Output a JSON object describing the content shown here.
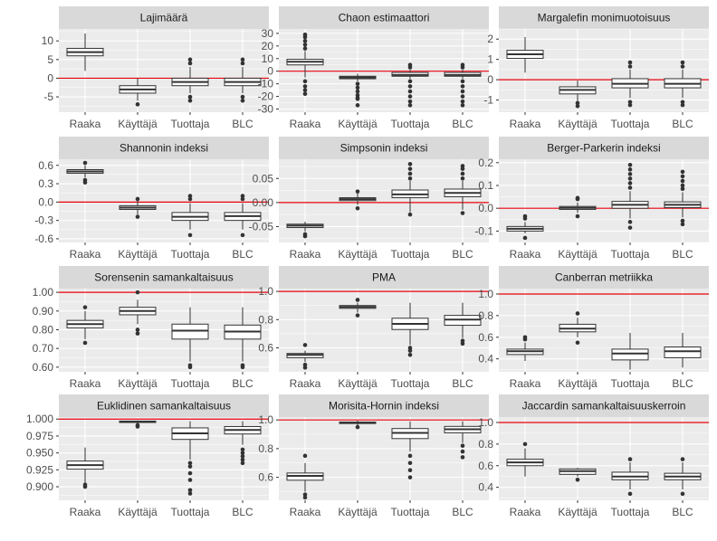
{
  "figure": {
    "background": "#ffffff",
    "panel_bg": "#ebebeb",
    "strip_bg": "#d9d9d9",
    "grid_color": "#ffffff",
    "box_fill": "#ffffff",
    "box_stroke": "#333333",
    "ref_line_color": "#e8000b"
  },
  "chart_data": [
    {
      "type": "box",
      "title": "Lajimäärä",
      "categories": [
        "Raaka",
        "Käyttäjä",
        "Tuottaja",
        "BLC"
      ],
      "ylim": [
        -9.1,
        13.2
      ],
      "yticks": [
        -5,
        0,
        5,
        10
      ],
      "ref_line": 0,
      "boxes": [
        {
          "whisker_low": 2,
          "q1": 6,
          "median": 7,
          "q3": 8,
          "whisker_high": 12,
          "outliers": []
        },
        {
          "whisker_low": -6,
          "q1": -4,
          "median": -3,
          "q3": -2,
          "whisker_high": 0,
          "outliers": [
            -7
          ]
        },
        {
          "whisker_low": -4,
          "q1": -2,
          "median": -1,
          "q3": 0,
          "whisker_high": 3,
          "outliers": [
            -5,
            -6,
            4,
            5
          ]
        },
        {
          "whisker_low": -4,
          "q1": -2,
          "median": -1,
          "q3": 0,
          "whisker_high": 3,
          "outliers": [
            -5,
            -6,
            4,
            5
          ]
        }
      ]
    },
    {
      "type": "box",
      "title": "Chaon estimaattori",
      "categories": [
        "Raaka",
        "Käyttäjä",
        "Tuottaja",
        "BLC"
      ],
      "ylim": [
        -32.5,
        33.5
      ],
      "yticks": [
        -30,
        -20,
        -10,
        0,
        10,
        20,
        30
      ],
      "ref_line": 0,
      "boxes": [
        {
          "whisker_low": -5,
          "q1": 5,
          "median": 7.5,
          "q3": 9.5,
          "whisker_high": 16,
          "outliers": [
            -8,
            -12,
            -15,
            -18,
            18,
            21,
            24,
            27,
            29
          ]
        },
        {
          "whisker_low": -8,
          "q1": -6,
          "median": -5,
          "q3": -4,
          "whisker_high": -2,
          "outliers": [
            -10,
            -13,
            -16,
            -19,
            -21,
            -22,
            -27
          ]
        },
        {
          "whisker_low": -6,
          "q1": -4,
          "median": -3,
          "q3": -1,
          "whisker_high": 1,
          "outliers": [
            -8,
            -12,
            -16,
            -20,
            -24,
            -27,
            3,
            5
          ]
        },
        {
          "whisker_low": -6,
          "q1": -4,
          "median": -3,
          "q3": -1,
          "whisker_high": 1,
          "outliers": [
            -8,
            -12,
            -16,
            -20,
            -24,
            -27,
            3,
            5
          ]
        }
      ]
    },
    {
      "type": "box",
      "title": "Margalefin monimuotoisuus",
      "categories": [
        "Raaka",
        "Käyttäjä",
        "Tuottaja",
        "BLC"
      ],
      "ylim": [
        -1.6,
        2.5
      ],
      "yticks": [
        -1,
        0,
        1,
        2
      ],
      "ref_line": 0,
      "boxes": [
        {
          "whisker_low": 0.35,
          "q1": 1.05,
          "median": 1.25,
          "q3": 1.45,
          "whisker_high": 2.1,
          "outliers": []
        },
        {
          "whisker_low": -1.05,
          "q1": -0.7,
          "median": -0.5,
          "q3": -0.35,
          "whisker_high": -0.05,
          "outliers": [
            -1.15,
            -1.3
          ]
        },
        {
          "whisker_low": -0.9,
          "q1": -0.4,
          "median": -0.2,
          "q3": 0.05,
          "whisker_high": 0.5,
          "outliers": [
            -1.1,
            -1.25,
            0.65,
            0.85
          ]
        },
        {
          "whisker_low": -0.9,
          "q1": -0.4,
          "median": -0.2,
          "q3": 0.05,
          "whisker_high": 0.5,
          "outliers": [
            -1.1,
            -1.25,
            0.65,
            0.85
          ]
        }
      ]
    },
    {
      "type": "box",
      "title": "Shannonin indeksi",
      "categories": [
        "Raaka",
        "Käyttäjä",
        "Tuottaja",
        "BLC"
      ],
      "ylim": [
        -0.66,
        0.7
      ],
      "yticks": [
        -0.6,
        -0.3,
        0.0,
        0.3,
        0.6
      ],
      "ref_line": 0,
      "boxes": [
        {
          "whisker_low": 0.4,
          "q1": 0.47,
          "median": 0.5,
          "q3": 0.53,
          "whisker_high": 0.6,
          "outliers": [
            0.32,
            0.36,
            0.64
          ]
        },
        {
          "whisker_low": -0.2,
          "q1": -0.12,
          "median": -0.09,
          "q3": -0.06,
          "whisker_high": 0.02,
          "outliers": [
            -0.24,
            0.05
          ]
        },
        {
          "whisker_low": -0.45,
          "q1": -0.3,
          "median": -0.24,
          "q3": -0.17,
          "whisker_high": -0.02,
          "outliers": [
            -0.54,
            0.05,
            0.1
          ]
        },
        {
          "whisker_low": -0.45,
          "q1": -0.3,
          "median": -0.23,
          "q3": -0.17,
          "whisker_high": -0.02,
          "outliers": [
            -0.54,
            0.05,
            0.1
          ]
        }
      ]
    },
    {
      "type": "box",
      "title": "Simpsonin indeksi",
      "categories": [
        "Raaka",
        "Käyttäjä",
        "Tuottaja",
        "BLC"
      ],
      "ylim": [
        -0.083,
        0.09
      ],
      "yticks": [
        -0.05,
        0.0,
        0.05
      ],
      "ref_line": 0,
      "boxes": [
        {
          "whisker_low": -0.06,
          "q1": -0.052,
          "median": -0.048,
          "q3": -0.045,
          "whisker_high": -0.04,
          "outliers": [
            -0.07,
            -0.066
          ]
        },
        {
          "whisker_low": -0.005,
          "q1": 0.004,
          "median": 0.007,
          "q3": 0.01,
          "whisker_high": 0.02,
          "outliers": [
            -0.012,
            0.023
          ]
        },
        {
          "whisker_low": -0.02,
          "q1": 0.01,
          "median": 0.017,
          "q3": 0.026,
          "whisker_high": 0.045,
          "outliers": [
            -0.025,
            0.05,
            0.06,
            0.07,
            0.08
          ]
        },
        {
          "whisker_low": -0.015,
          "q1": 0.012,
          "median": 0.02,
          "q3": 0.028,
          "whisker_high": 0.045,
          "outliers": [
            -0.022,
            0.05,
            0.06,
            0.07,
            0.076
          ]
        }
      ]
    },
    {
      "type": "box",
      "title": "Berger-Parkerin indeksi",
      "categories": [
        "Raaka",
        "Käyttäjä",
        "Tuottaja",
        "BLC"
      ],
      "ylim": [
        -0.15,
        0.215
      ],
      "yticks": [
        -0.1,
        0.0,
        0.1,
        0.2
      ],
      "ref_line": 0,
      "boxes": [
        {
          "whisker_low": -0.11,
          "q1": -0.1,
          "median": -0.09,
          "q3": -0.08,
          "whisker_high": -0.06,
          "outliers": [
            -0.035,
            -0.045,
            -0.13
          ]
        },
        {
          "whisker_low": -0.02,
          "q1": -0.005,
          "median": 0.002,
          "q3": 0.008,
          "whisker_high": 0.025,
          "outliers": [
            -0.035,
            0.04,
            0.045
          ]
        },
        {
          "whisker_low": -0.045,
          "q1": 0.0,
          "median": 0.015,
          "q3": 0.03,
          "whisker_high": 0.075,
          "outliers": [
            -0.06,
            -0.085,
            0.09,
            0.11,
            0.13,
            0.15,
            0.17,
            0.19
          ]
        },
        {
          "whisker_low": -0.04,
          "q1": 0.003,
          "median": 0.015,
          "q3": 0.028,
          "whisker_high": 0.07,
          "outliers": [
            -0.055,
            -0.07,
            0.085,
            0.1,
            0.12,
            0.14,
            0.16
          ]
        }
      ]
    },
    {
      "type": "box",
      "title": "Sorensenin samankaltaisuus",
      "categories": [
        "Raaka",
        "Käyttäjä",
        "Tuottaja",
        "BLC"
      ],
      "ylim": [
        0.575,
        1.02
      ],
      "yticks": [
        0.6,
        0.7,
        0.8,
        0.9,
        1.0
      ],
      "ref_line": 1.0,
      "boxes": [
        {
          "whisker_low": 0.75,
          "q1": 0.81,
          "median": 0.83,
          "q3": 0.85,
          "whisker_high": 0.9,
          "outliers": [
            0.73,
            0.92
          ]
        },
        {
          "whisker_low": 0.83,
          "q1": 0.88,
          "median": 0.9,
          "q3": 0.92,
          "whisker_high": 0.96,
          "outliers": [
            0.78,
            0.8,
            1.0
          ]
        },
        {
          "whisker_low": 0.63,
          "q1": 0.75,
          "median": 0.795,
          "q3": 0.83,
          "whisker_high": 0.92,
          "outliers": [
            0.6,
            0.61
          ]
        },
        {
          "whisker_low": 0.63,
          "q1": 0.75,
          "median": 0.79,
          "q3": 0.825,
          "whisker_high": 0.92,
          "outliers": [
            0.6,
            0.61
          ]
        }
      ]
    },
    {
      "type": "box",
      "title": "PMA",
      "categories": [
        "Raaka",
        "Käyttäjä",
        "Tuottaja",
        "BLC"
      ],
      "ylim": [
        0.43,
        1.02
      ],
      "yticks": [
        0.6,
        0.8,
        1.0
      ],
      "ref_line": 1.0,
      "boxes": [
        {
          "whisker_low": 0.5,
          "q1": 0.53,
          "median": 0.55,
          "q3": 0.56,
          "whisker_high": 0.58,
          "outliers": [
            0.46,
            0.48,
            0.62
          ]
        },
        {
          "whisker_low": 0.85,
          "q1": 0.88,
          "median": 0.89,
          "q3": 0.9,
          "whisker_high": 0.92,
          "outliers": [
            0.83,
            0.94
          ]
        },
        {
          "whisker_low": 0.62,
          "q1": 0.73,
          "median": 0.77,
          "q3": 0.81,
          "whisker_high": 0.92,
          "outliers": [
            0.55,
            0.58,
            0.6
          ]
        },
        {
          "whisker_low": 0.67,
          "q1": 0.76,
          "median": 0.8,
          "q3": 0.83,
          "whisker_high": 0.92,
          "outliers": [
            0.63,
            0.65
          ]
        }
      ]
    },
    {
      "type": "box",
      "title": "Canberran metriikka",
      "categories": [
        "Raaka",
        "Käyttäjä",
        "Tuottaja",
        "BLC"
      ],
      "ylim": [
        0.28,
        1.05
      ],
      "yticks": [
        0.4,
        0.6,
        0.8,
        1.0
      ],
      "ref_line": 1.0,
      "boxes": [
        {
          "whisker_low": 0.38,
          "q1": 0.44,
          "median": 0.47,
          "q3": 0.49,
          "whisker_high": 0.55,
          "outliers": [
            0.58,
            0.6
          ]
        },
        {
          "whisker_low": 0.6,
          "q1": 0.65,
          "median": 0.68,
          "q3": 0.72,
          "whisker_high": 0.78,
          "outliers": [
            0.55,
            0.82
          ]
        },
        {
          "whisker_low": 0.3,
          "q1": 0.39,
          "median": 0.45,
          "q3": 0.49,
          "whisker_high": 0.64,
          "outliers": []
        },
        {
          "whisker_low": 0.32,
          "q1": 0.41,
          "median": 0.47,
          "q3": 0.51,
          "whisker_high": 0.64,
          "outliers": []
        }
      ]
    },
    {
      "type": "box",
      "title": "Euklidinen samankaltaisuus",
      "categories": [
        "Raaka",
        "Käyttäjä",
        "Tuottaja",
        "BLC"
      ],
      "ylim": [
        0.88,
        1.003
      ],
      "yticks": [
        0.9,
        0.925,
        0.95,
        0.975,
        1.0
      ],
      "yticklabels": [
        "0.900",
        "0.925",
        "0.950",
        "0.975",
        "1.000"
      ],
      "ref_line": 1.0,
      "boxes": [
        {
          "whisker_low": 0.905,
          "q1": 0.926,
          "median": 0.932,
          "q3": 0.938,
          "whisker_high": 0.958,
          "outliers": [
            0.9,
            0.903
          ]
        },
        {
          "whisker_low": 0.992,
          "q1": 0.995,
          "median": 0.996,
          "q3": 0.997,
          "whisker_high": 0.998,
          "outliers": [
            0.989,
            0.991
          ]
        },
        {
          "whisker_low": 0.94,
          "q1": 0.97,
          "median": 0.979,
          "q3": 0.987,
          "whisker_high": 0.997,
          "outliers": [
            0.89,
            0.895,
            0.91,
            0.92,
            0.93,
            0.935
          ]
        },
        {
          "whisker_low": 0.962,
          "q1": 0.978,
          "median": 0.984,
          "q3": 0.989,
          "whisker_high": 0.997,
          "outliers": [
            0.935,
            0.94,
            0.945,
            0.95,
            0.955
          ]
        }
      ]
    },
    {
      "type": "box",
      "title": "Morisita-Hornin indeksi",
      "categories": [
        "Raaka",
        "Käyttäjä",
        "Tuottaja",
        "BLC"
      ],
      "ylim": [
        0.44,
        1.02
      ],
      "yticks": [
        0.6,
        0.8,
        1.0
      ],
      "ref_line": 1.0,
      "boxes": [
        {
          "whisker_low": 0.5,
          "q1": 0.58,
          "median": 0.61,
          "q3": 0.63,
          "whisker_high": 0.7,
          "outliers": [
            0.46,
            0.48,
            0.75
          ]
        },
        {
          "whisker_low": 0.96,
          "q1": 0.975,
          "median": 0.98,
          "q3": 0.985,
          "whisker_high": 0.995,
          "outliers": [
            0.95
          ]
        },
        {
          "whisker_low": 0.78,
          "q1": 0.87,
          "median": 0.91,
          "q3": 0.94,
          "whisker_high": 0.99,
          "outliers": [
            0.6,
            0.65,
            0.7,
            0.75
          ]
        },
        {
          "whisker_low": 0.84,
          "q1": 0.91,
          "median": 0.935,
          "q3": 0.955,
          "whisker_high": 0.99,
          "outliers": [
            0.74,
            0.78,
            0.82
          ]
        }
      ]
    },
    {
      "type": "box",
      "title": "Jaccardin samankaltaisuuskerroin",
      "categories": [
        "Raaka",
        "Käyttäjä",
        "Tuottaja",
        "BLC"
      ],
      "ylim": [
        0.28,
        1.05
      ],
      "yticks": [
        0.4,
        0.6,
        0.8,
        1.0
      ],
      "ref_line": 1.0,
      "boxes": [
        {
          "whisker_low": 0.5,
          "q1": 0.6,
          "median": 0.63,
          "q3": 0.66,
          "whisker_high": 0.76,
          "outliers": [
            0.8
          ]
        },
        {
          "whisker_low": 0.5,
          "q1": 0.52,
          "median": 0.55,
          "q3": 0.57,
          "whisker_high": 0.58,
          "outliers": [
            0.47
          ]
        },
        {
          "whisker_low": 0.38,
          "q1": 0.47,
          "median": 0.5,
          "q3": 0.54,
          "whisker_high": 0.63,
          "outliers": [
            0.34,
            0.66
          ]
        },
        {
          "whisker_low": 0.38,
          "q1": 0.47,
          "median": 0.5,
          "q3": 0.53,
          "whisker_high": 0.63,
          "outliers": [
            0.34,
            0.66
          ]
        }
      ]
    }
  ]
}
